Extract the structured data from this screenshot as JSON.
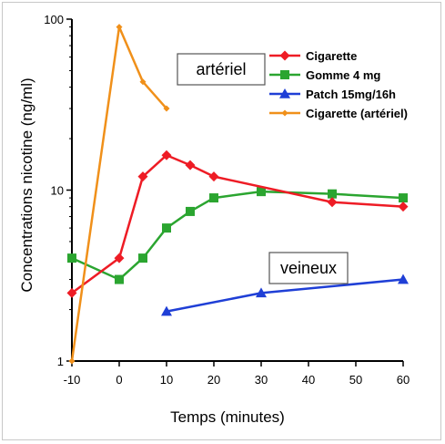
{
  "chart_data": {
    "type": "line",
    "title": "",
    "xlabel": "Temps (minutes)",
    "ylabel": "Concentrations nicotine (ng/ml)",
    "xlim": [
      -10,
      60
    ],
    "ylim": [
      1,
      100
    ],
    "yscale": "log",
    "xticks": [
      -10,
      0,
      10,
      20,
      30,
      40,
      50,
      60
    ],
    "xtick_labels": [
      "-10",
      "0",
      "10",
      "20",
      "30",
      "40",
      "50",
      "60"
    ],
    "yticks": [
      1,
      10,
      100
    ],
    "ytick_labels": [
      "1",
      "10",
      "100"
    ],
    "grid": false,
    "legend_position": "top-right",
    "series": [
      {
        "name": "Cigarette",
        "color": "#ee1c25",
        "marker": "diamond",
        "x": [
          -10,
          0,
          5,
          10,
          15,
          20,
          45,
          60
        ],
        "y": [
          2.5,
          4.0,
          12.0,
          16.0,
          14.0,
          12.0,
          8.5,
          8.0
        ]
      },
      {
        "name": "Gomme 4 mg",
        "color": "#2ba530",
        "marker": "square",
        "x": [
          -10,
          0,
          5,
          10,
          15,
          20,
          30,
          45,
          60
        ],
        "y": [
          4.0,
          3.0,
          4.0,
          6.0,
          7.5,
          9.0,
          9.8,
          9.5,
          9.0
        ]
      },
      {
        "name": "Patch 15mg/16h",
        "color": "#1f3fd6",
        "marker": "triangle",
        "x": [
          10,
          30,
          60
        ],
        "y": [
          1.95,
          2.5,
          3.0
        ]
      },
      {
        "name": "Cigarette (artériel)",
        "color": "#f0901a",
        "marker": "diamond-small",
        "x": [
          -10,
          0,
          5,
          10
        ],
        "y": [
          1.0,
          90.0,
          43.0,
          30.0
        ]
      }
    ],
    "annotations": [
      {
        "id": "arteriel",
        "text": "artériel"
      },
      {
        "id": "veineux",
        "text": "veineux"
      }
    ]
  }
}
